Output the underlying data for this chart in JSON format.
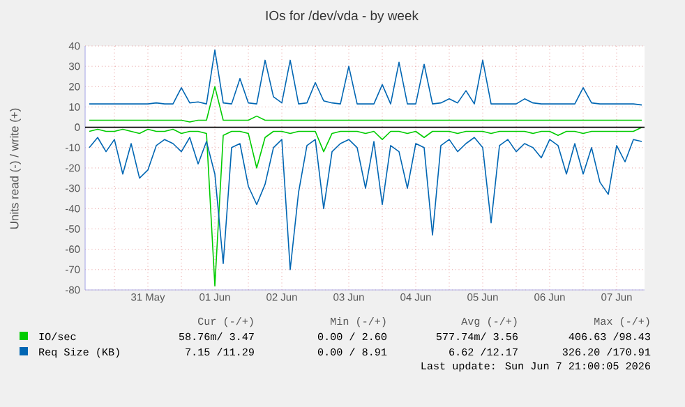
{
  "chart_data": {
    "type": "line",
    "title": "IOs for /dev/vda - by week",
    "ylabel": "Units read (-) / write (+)",
    "x": [
      "2026-05-30T15:00",
      "2026-05-30T18:00",
      "2026-05-30T21:00",
      "2026-05-31T00:00",
      "2026-05-31T03:00",
      "2026-05-31T06:00",
      "2026-05-31T09:00",
      "2026-05-31T12:00",
      "2026-05-31T15:00",
      "2026-05-31T18:00",
      "2026-05-31T21:00",
      "2026-06-01T00:00",
      "2026-06-01T03:00",
      "2026-06-01T06:00",
      "2026-06-01T09:00",
      "2026-06-01T12:00",
      "2026-06-01T15:00",
      "2026-06-01T18:00",
      "2026-06-01T21:00",
      "2026-06-02T00:00",
      "2026-06-02T03:00",
      "2026-06-02T06:00",
      "2026-06-02T09:00",
      "2026-06-02T12:00",
      "2026-06-02T15:00",
      "2026-06-02T18:00",
      "2026-06-02T21:00",
      "2026-06-03T00:00",
      "2026-06-03T03:00",
      "2026-06-03T06:00",
      "2026-06-03T09:00",
      "2026-06-03T12:00",
      "2026-06-03T15:00",
      "2026-06-03T18:00",
      "2026-06-03T21:00",
      "2026-06-04T00:00",
      "2026-06-04T03:00",
      "2026-06-04T06:00",
      "2026-06-04T09:00",
      "2026-06-04T12:00",
      "2026-06-04T15:00",
      "2026-06-04T18:00",
      "2026-06-04T21:00",
      "2026-06-05T00:00",
      "2026-06-05T03:00",
      "2026-06-05T06:00",
      "2026-06-05T09:00",
      "2026-06-05T12:00",
      "2026-06-05T15:00",
      "2026-06-05T18:00",
      "2026-06-05T21:00",
      "2026-06-06T00:00",
      "2026-06-06T03:00",
      "2026-06-06T06:00",
      "2026-06-06T09:00",
      "2026-06-06T12:00",
      "2026-06-06T15:00",
      "2026-06-06T18:00",
      "2026-06-06T21:00",
      "2026-06-07T00:00",
      "2026-06-07T03:00",
      "2026-06-07T06:00",
      "2026-06-07T09:00",
      "2026-06-07T12:00",
      "2026-06-07T15:00",
      "2026-06-07T18:00",
      "2026-06-07T21:00"
    ],
    "series": [
      {
        "name": "IO/sec",
        "color": "#00cc00",
        "values": [
          3.5,
          3.5,
          3.5,
          3.5,
          3.5,
          3.5,
          3.5,
          3.5,
          3.5,
          3.5,
          3.5,
          3.5,
          2.6,
          3.5,
          3.5,
          20,
          3.5,
          3.5,
          3.5,
          3.5,
          5.5,
          3.5,
          3.5,
          3.5,
          3.5,
          3.5,
          3.5,
          3.5,
          3.5,
          3.5,
          3.5,
          3.5,
          3.5,
          3.5,
          3.5,
          3.5,
          3.5,
          3.5,
          3.5,
          3.5,
          3.5,
          3.5,
          3.5,
          3.5,
          3.5,
          3.5,
          3.5,
          3.5,
          3.5,
          3.5,
          3.5,
          3.5,
          3.5,
          3.5,
          3.5,
          3.5,
          3.5,
          3.5,
          3.5,
          3.5,
          3.5,
          3.5,
          3.5,
          3.5,
          3.5,
          3.5,
          3.5
        ]
      },
      {
        "color": "#00cc00",
        "values": [
          -2,
          -1,
          -2,
          -2,
          -1,
          -2,
          -3,
          -1,
          -2,
          -2,
          -1,
          -3,
          -2,
          -2,
          -3,
          -78,
          -4,
          -2,
          -2,
          -3,
          -20,
          -5,
          -2,
          -2,
          -3,
          -2,
          -2,
          -2,
          -12,
          -3,
          -2,
          -2,
          -2,
          -3,
          -2,
          -6,
          -2,
          -2,
          -3,
          -2,
          -5,
          -2,
          -2,
          -2,
          -3,
          -2,
          -2,
          -2,
          -3,
          -2,
          -2,
          -2,
          -2,
          -3,
          -2,
          -2,
          -4,
          -2,
          -2,
          -3,
          -2,
          -2,
          -2,
          -2,
          -2,
          -2,
          0
        ]
      },
      {
        "name": "Req Size (KB)",
        "color": "#0066b3",
        "values": [
          11.5,
          11.5,
          11.5,
          11.5,
          11.5,
          11.5,
          11.5,
          11.5,
          12,
          11.5,
          11.5,
          19.5,
          12,
          12.5,
          11.5,
          38,
          12,
          11.5,
          24,
          12,
          11.5,
          33,
          15,
          12,
          33,
          11.5,
          12,
          22,
          13,
          12,
          11.5,
          30,
          11.5,
          11.5,
          11.5,
          21,
          11.5,
          32,
          11.5,
          11.5,
          31,
          11.5,
          12,
          14,
          12,
          18,
          11.5,
          33,
          11.5,
          11.5,
          11.5,
          11.5,
          14,
          12,
          11.5,
          11.5,
          11.5,
          11.5,
          11.5,
          19.5,
          12,
          11.5,
          11.5,
          11.5,
          11.5,
          11.5,
          11
        ]
      },
      {
        "color": "#0066b3",
        "values": [
          -10,
          -5,
          -12,
          -6,
          -23,
          -8,
          -25,
          -21,
          -9,
          -6,
          -8,
          -12,
          -5,
          -18,
          -7,
          -23,
          -67,
          -10,
          -8,
          -29,
          -38,
          -28,
          -10,
          -6,
          -70,
          -32,
          -9,
          -6,
          -40,
          -12,
          -8,
          -6,
          -10,
          -30,
          -7,
          -38,
          -9,
          -12,
          -30,
          -8,
          -10,
          -53,
          -9,
          -6,
          -12,
          -8,
          -5,
          -10,
          -47,
          -9,
          -6,
          -12,
          -8,
          -10,
          -15,
          -6,
          -9,
          -23,
          -8,
          -23,
          -10,
          -27,
          -33,
          -9,
          -17,
          -6,
          -7
        ]
      }
    ],
    "xlim": [
      "2026-05-30T13:30",
      "2026-06-07T22:00"
    ],
    "xticks": [
      {
        "value": "2026-05-31T00:00",
        "label": null
      },
      {
        "value": "2026-05-31T12:00",
        "label": "31 May"
      },
      {
        "value": "2026-06-01T00:00",
        "label": null
      },
      {
        "value": "2026-06-01T12:00",
        "label": "01 Jun"
      },
      {
        "value": "2026-06-02T00:00",
        "label": null
      },
      {
        "value": "2026-06-02T12:00",
        "label": "02 Jun"
      },
      {
        "value": "2026-06-03T00:00",
        "label": null
      },
      {
        "value": "2026-06-03T12:00",
        "label": "03 Jun"
      },
      {
        "value": "2026-06-04T00:00",
        "label": null
      },
      {
        "value": "2026-06-04T12:00",
        "label": "04 Jun"
      },
      {
        "value": "2026-06-05T00:00",
        "label": null
      },
      {
        "value": "2026-06-05T12:00",
        "label": "05 Jun"
      },
      {
        "value": "2026-06-06T00:00",
        "label": null
      },
      {
        "value": "2026-06-06T12:00",
        "label": "06 Jun"
      },
      {
        "value": "2026-06-07T00:00",
        "label": null
      },
      {
        "value": "2026-06-07T12:00",
        "label": "07 Jun"
      }
    ],
    "ylim": [
      -80,
      40
    ],
    "yticks": [
      -80,
      -70,
      -60,
      -50,
      -40,
      -30,
      -20,
      -10,
      0,
      10,
      20,
      30,
      40
    ],
    "grid": true,
    "legend": "bottom",
    "ref_lines": [
      {
        "axis": "y",
        "value": 0,
        "color": "#000000"
      }
    ],
    "annotations": [
      "Cur (-/+)",
      "Min (-/+)",
      "Avg (-/+)",
      "Max (-/+)",
      "58.76m/ 3.47",
      "0.00 / 2.60",
      "577.74m/ 3.56",
      "406.63 /98.43",
      "7.15 /11.29",
      "0.00 / 8.91",
      "6.62 /12.17",
      "326.20 /170.91",
      "Last update: Sun Jun  7 21:00:05 2026"
    ]
  }
}
